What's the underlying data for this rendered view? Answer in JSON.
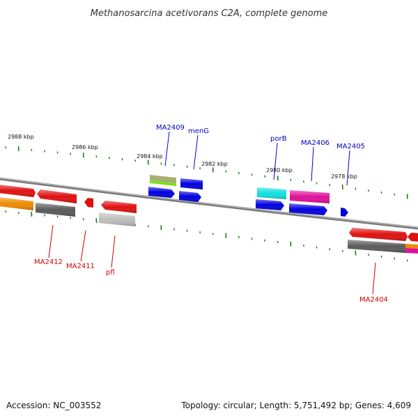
{
  "title": "Methanosarcina acetivorans C2A, complete genome",
  "footer": {
    "accession": "Accession: NC_003552",
    "summary": "Topology: circular; Length: 5,751,492 bp; Genes: 4,609"
  },
  "ticks": [
    "2988 kbp",
    "2986 kbp",
    "2984 kbp",
    "2982 kbp",
    "2980 kbp",
    "2978 kbp"
  ],
  "labels": {
    "ma2409": "MA2409",
    "meng": "menG",
    "porb": "porB",
    "ma2406": "MA2406",
    "ma2405": "MA2405",
    "ma2412": "MA2412",
    "ma2411": "MA2411",
    "pfl": "pfl",
    "ma2404": "MA2404"
  },
  "colors": {
    "tick": "#1f7a1f",
    "backbone": "#888888",
    "red": "#e01010",
    "orange": "#f08a00",
    "darkgray": "#5a5a5a",
    "lightgray": "#bdbdbd",
    "blue": "#0000e0",
    "olive": "#a8b070",
    "lime": "#7ae020",
    "cyan": "#10e0e0",
    "magenta": "#e0109a"
  }
}
